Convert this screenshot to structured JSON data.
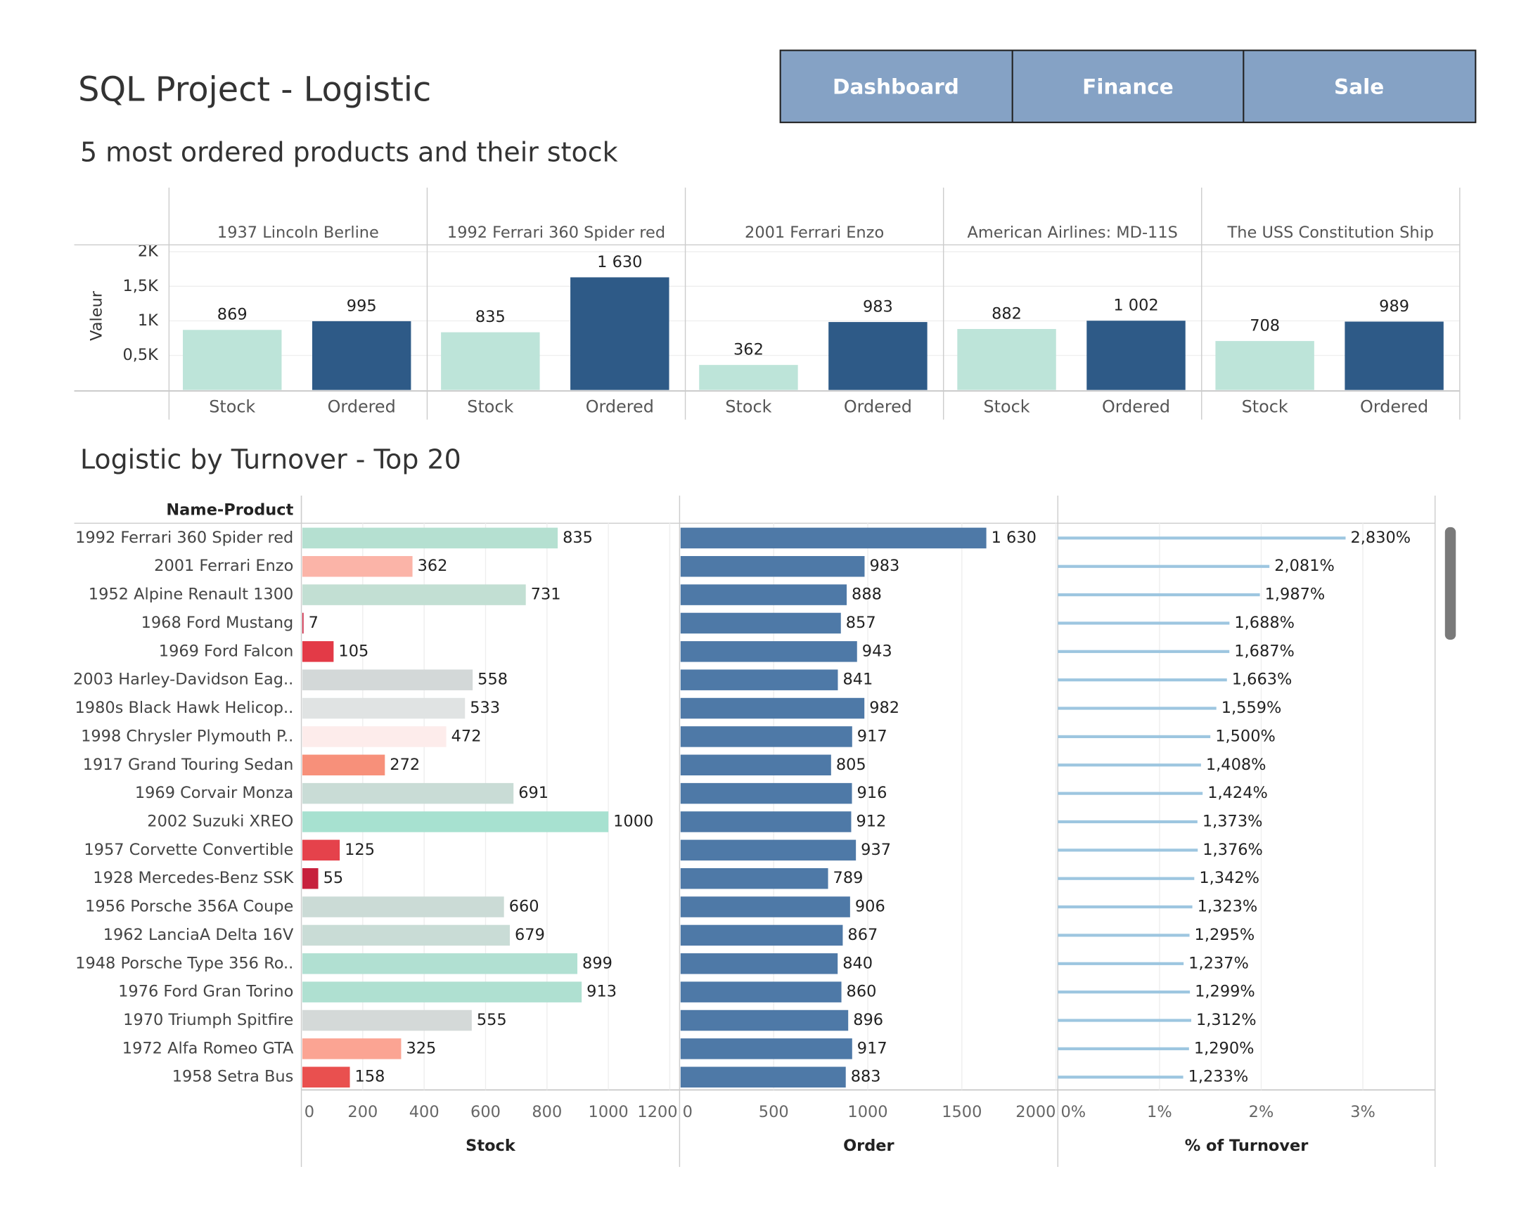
{
  "title": "SQL Project - Logistic",
  "nav": [
    "Dashboard",
    "Finance",
    "Sale"
  ],
  "chart_data": [
    {
      "type": "grouped-bar",
      "title": "5 most ordered products and their stock",
      "y_label": "Valeur",
      "categories": [
        "1937 Lincoln Berline",
        "1992 Ferrari 360 Spider red",
        "2001 Ferrari Enzo",
        "American Airlines: MD-11S",
        "The USS Constitution Ship"
      ],
      "series": [
        {
          "name": "Stock",
          "color": "#bde4d9",
          "values": [
            869,
            835,
            362,
            882,
            708
          ]
        },
        {
          "name": "Ordered",
          "color": "#2e5a87",
          "values": [
            995,
            1630,
            983,
            1002,
            989
          ],
          "value_labels": [
            "995",
            "1 630",
            "983",
            "1 002",
            "989"
          ]
        }
      ],
      "ylim": [
        0,
        2100
      ],
      "yticks": [
        {
          "value": 500,
          "label": "0,5K"
        },
        {
          "value": 1000,
          "label": "1K"
        },
        {
          "value": 1500,
          "label": "1,5K"
        },
        {
          "value": 2000,
          "label": "2K"
        }
      ],
      "grid": true
    },
    {
      "type": "horizontal-bar-panels",
      "title": "Logistic by Turnover - Top 20",
      "category_label": "Name-Product",
      "categories": [
        "1992 Ferrari 360 Spider red",
        "2001 Ferrari Enzo",
        "1952 Alpine Renault 1300",
        "1968 Ford Mustang",
        "1969 Ford Falcon",
        "2003 Harley-Davidson Eag..",
        "1980s Black Hawk Helicop..",
        "1998 Chrysler Plymouth P..",
        "1917 Grand Touring Sedan",
        "1969 Corvair Monza",
        "2002 Suzuki XREO",
        "1957 Corvette Convertible",
        "1928 Mercedes-Benz SSK",
        "1956 Porsche 356A Coupe",
        "1962 LanciaA Delta 16V",
        "1948 Porsche Type 356 Ro..",
        "1976 Ford Gran Torino",
        "1970 Triumph Spitfire",
        "1972 Alfa Romeo GTA",
        "1958 Setra Bus"
      ],
      "panels": [
        {
          "name": "Stock",
          "style": "bar",
          "values": [
            835,
            362,
            731,
            7,
            105,
            558,
            533,
            472,
            272,
            691,
            1000,
            125,
            55,
            660,
            679,
            899,
            913,
            555,
            325,
            158
          ],
          "colors": [
            "#b5e0d1",
            "#fbb4a8",
            "#c2dfd3",
            "#c8213d",
            "#e33a47",
            "#d3d8d8",
            "#e0e3e3",
            "#fdeceb",
            "#f7907a",
            "#c9dcd6",
            "#a7e1d0",
            "#e5424b",
            "#c7213d",
            "#cbdbd6",
            "#c9dcd6",
            "#b1e0d2",
            "#afe0d1",
            "#d4d9d8",
            "#fba493",
            "#e9504f"
          ],
          "xlim": [
            0,
            1232
          ],
          "xticks": [
            0,
            200,
            400,
            600,
            800,
            1000,
            1200
          ]
        },
        {
          "name": "Order",
          "style": "bar",
          "color": "#4e79a7",
          "values": [
            1630,
            983,
            888,
            857,
            943,
            841,
            982,
            917,
            805,
            916,
            912,
            937,
            789,
            906,
            867,
            840,
            860,
            896,
            917,
            883
          ],
          "value_labels": [
            "1 630",
            "983",
            "888",
            "857",
            "943",
            "841",
            "982",
            "917",
            "805",
            "916",
            "912",
            "937",
            "789",
            "906",
            "867",
            "840",
            "860",
            "896",
            "917",
            "883"
          ],
          "xlim": [
            0,
            2010
          ],
          "xticks": [
            0,
            500,
            1000,
            1500,
            2000
          ]
        },
        {
          "name": "% of Turnover",
          "style": "line",
          "color": "#9dc6e0",
          "values": [
            2.83,
            2.081,
            1.987,
            1.688,
            1.687,
            1.663,
            1.559,
            1.5,
            1.408,
            1.424,
            1.373,
            1.376,
            1.342,
            1.323,
            1.295,
            1.237,
            1.299,
            1.312,
            1.29,
            1.233
          ],
          "value_labels": [
            "2,830%",
            "2,081%",
            "1,987%",
            "1,688%",
            "1,687%",
            "1,663%",
            "1,559%",
            "1,500%",
            "1,408%",
            "1,424%",
            "1,373%",
            "1,376%",
            "1,342%",
            "1,323%",
            "1,295%",
            "1,237%",
            "1,299%",
            "1,312%",
            "1,290%",
            "1,233%"
          ],
          "xlim": [
            0,
            3.71
          ],
          "xticks": [
            {
              "value": 0,
              "label": "0%"
            },
            {
              "value": 1,
              "label": "1%"
            },
            {
              "value": 2,
              "label": "2%"
            },
            {
              "value": 3,
              "label": "3%"
            }
          ]
        }
      ],
      "grid": true
    }
  ]
}
